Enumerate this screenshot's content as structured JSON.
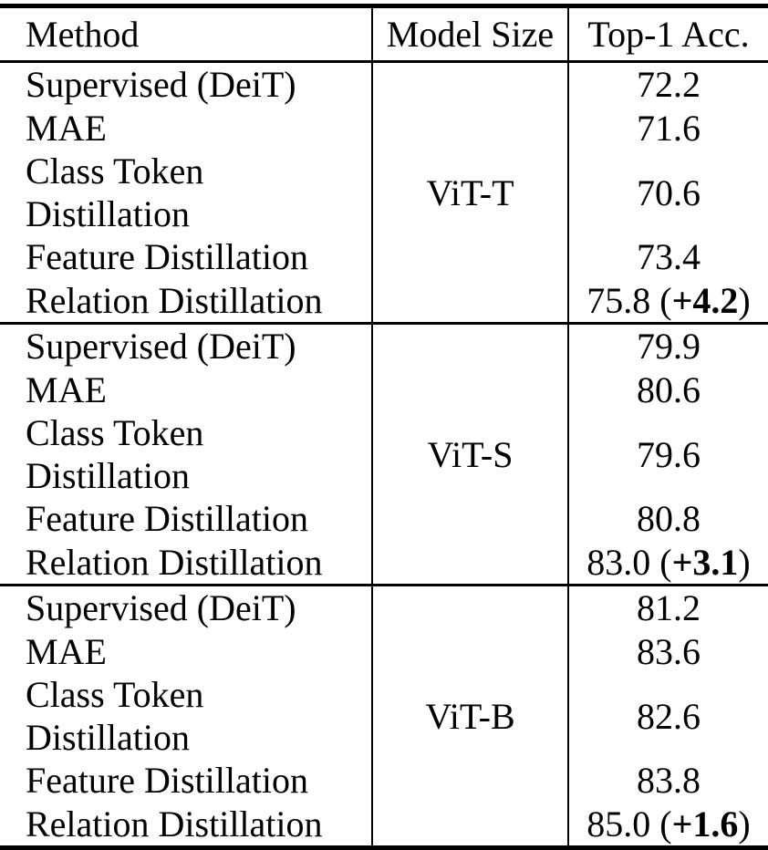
{
  "header": {
    "method": "Method",
    "model_size": "Model Size",
    "top1_acc": "Top-1 Acc."
  },
  "groups": [
    {
      "model_size": "ViT-T",
      "rows": [
        {
          "method": "Supervised (DeiT)",
          "acc": "72.2",
          "gain": null
        },
        {
          "method": "MAE",
          "acc": "71.6",
          "gain": null
        },
        {
          "method": "Class Token Distillation",
          "acc": "70.6",
          "gain": null
        },
        {
          "method": "Feature Distillation",
          "acc": "73.4",
          "gain": null
        },
        {
          "method": "Relation Distillation",
          "acc": "75.8",
          "gain": "+4.2"
        }
      ]
    },
    {
      "model_size": "ViT-S",
      "rows": [
        {
          "method": "Supervised (DeiT)",
          "acc": "79.9",
          "gain": null
        },
        {
          "method": "MAE",
          "acc": "80.6",
          "gain": null
        },
        {
          "method": "Class Token Distillation",
          "acc": "79.6",
          "gain": null
        },
        {
          "method": "Feature Distillation",
          "acc": "80.8",
          "gain": null
        },
        {
          "method": "Relation Distillation",
          "acc": "83.0",
          "gain": "+3.1"
        }
      ]
    },
    {
      "model_size": "ViT-B",
      "rows": [
        {
          "method": "Supervised (DeiT)",
          "acc": "81.2",
          "gain": null
        },
        {
          "method": "MAE",
          "acc": "83.6",
          "gain": null
        },
        {
          "method": "Class Token Distillation",
          "acc": "82.6",
          "gain": null
        },
        {
          "method": "Feature Distillation",
          "acc": "83.8",
          "gain": null
        },
        {
          "method": "Relation Distillation",
          "acc": "85.0",
          "gain": "+1.6"
        }
      ]
    }
  ],
  "colors": {
    "text": "#000000",
    "background": "#ffffff",
    "rule": "#000000"
  },
  "chart_data": {
    "type": "table",
    "columns": [
      "Method",
      "Model Size",
      "Top-1 Acc."
    ],
    "rows": [
      [
        "Supervised (DeiT)",
        "ViT-T",
        "72.2"
      ],
      [
        "MAE",
        "ViT-T",
        "71.6"
      ],
      [
        "Class Token Distillation",
        "ViT-T",
        "70.6"
      ],
      [
        "Feature Distillation",
        "ViT-T",
        "73.4"
      ],
      [
        "Relation Distillation",
        "ViT-T",
        "75.8 (+4.2)"
      ],
      [
        "Supervised (DeiT)",
        "ViT-S",
        "79.9"
      ],
      [
        "MAE",
        "ViT-S",
        "80.6"
      ],
      [
        "Class Token Distillation",
        "ViT-S",
        "79.6"
      ],
      [
        "Feature Distillation",
        "ViT-S",
        "80.8"
      ],
      [
        "Relation Distillation",
        "ViT-S",
        "83.0 (+3.1)"
      ],
      [
        "Supervised (DeiT)",
        "ViT-B",
        "81.2"
      ],
      [
        "MAE",
        "ViT-B",
        "83.6"
      ],
      [
        "Class Token Distillation",
        "ViT-B",
        "82.6"
      ],
      [
        "Feature Distillation",
        "ViT-B",
        "83.8"
      ],
      [
        "Relation Distillation",
        "ViT-B",
        "85.0 (+1.6)"
      ]
    ]
  }
}
